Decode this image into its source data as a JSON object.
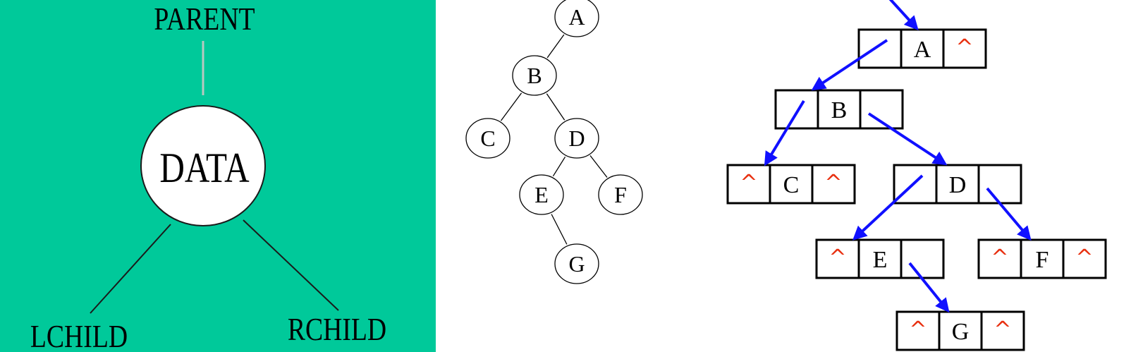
{
  "panel_node": {
    "parent": "PARENT",
    "data": "DATA",
    "lchild": "LCHILD",
    "rchild": "RCHILD",
    "background": "#00c99a"
  },
  "tree": {
    "nodes": [
      "A",
      "B",
      "C",
      "D",
      "E",
      "F",
      "G"
    ],
    "edges": [
      [
        "A",
        "B"
      ],
      [
        "B",
        "C"
      ],
      [
        "B",
        "D"
      ],
      [
        "D",
        "E"
      ],
      [
        "D",
        "F"
      ],
      [
        "E",
        "G"
      ]
    ]
  },
  "linked": {
    "null_symbol": "^",
    "nodes": [
      {
        "id": "A",
        "left": "",
        "right": "^"
      },
      {
        "id": "B",
        "left": "",
        "right": ""
      },
      {
        "id": "C",
        "left": "^",
        "right": "^"
      },
      {
        "id": "D",
        "left": "",
        "right": ""
      },
      {
        "id": "E",
        "left": "^",
        "right": ""
      },
      {
        "id": "F",
        "left": "^",
        "right": "^"
      },
      {
        "id": "G",
        "left": "^",
        "right": "^"
      }
    ],
    "pointer_color": "#1010ff",
    "null_color": "#e83010"
  }
}
